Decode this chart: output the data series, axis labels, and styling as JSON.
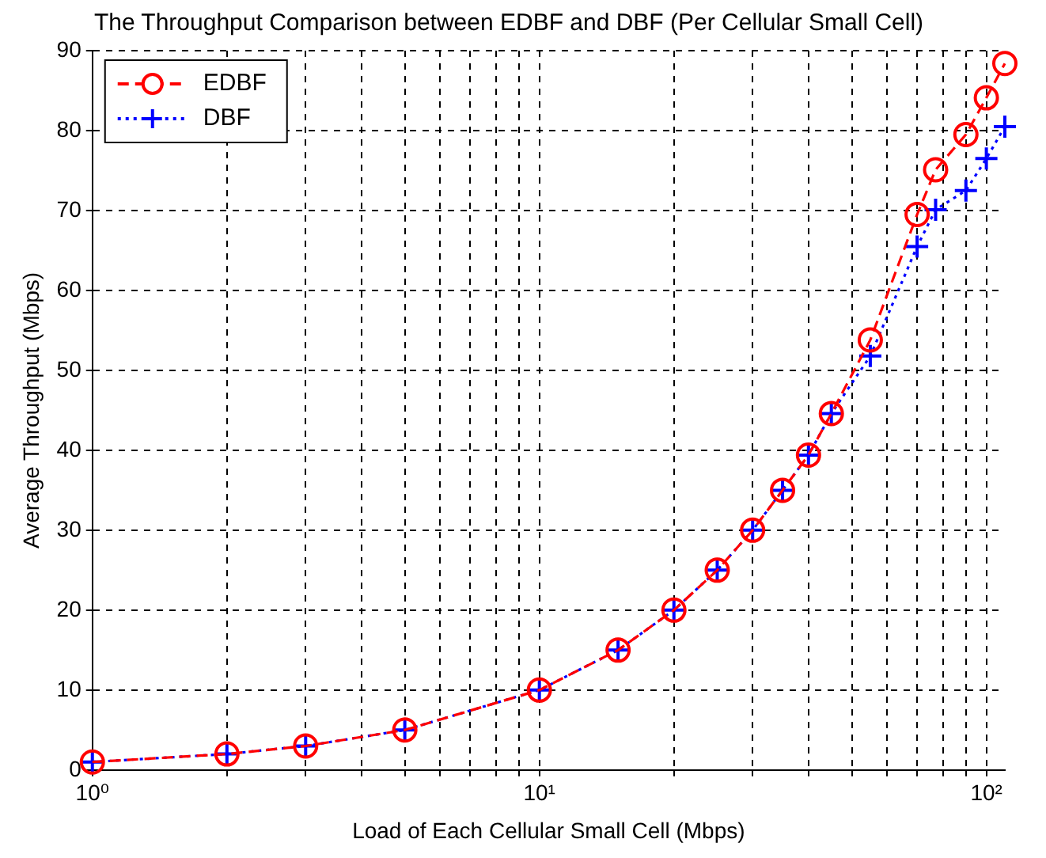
{
  "chart_data": {
    "type": "line",
    "title": "The Throughput Comparison between EDBF and DBF (Per Cellular Small Cell)",
    "xlabel": "Load of Each Cellular Small Cell (Mbps)",
    "ylabel": "Average Throughput (Mbps)",
    "log": "x",
    "x": [
      1,
      2,
      3,
      5,
      10,
      15,
      20,
      25,
      30,
      35,
      40,
      45,
      55,
      70,
      77,
      90,
      100,
      110
    ],
    "series": [
      {
        "name": "EDBF",
        "color": "#ff0000",
        "marker": "circle",
        "line_style": "dashed",
        "values": [
          1,
          2,
          3,
          5,
          10,
          15,
          20,
          25,
          30,
          35,
          39.4,
          44.6,
          53.8,
          69.5,
          75.1,
          79.5,
          84.1,
          88.4
        ]
      },
      {
        "name": "DBF",
        "color": "#0000ff",
        "marker": "cross",
        "line_style": "dotted",
        "values": [
          1,
          2,
          3,
          5,
          10,
          15,
          20,
          25,
          30,
          35,
          39.4,
          44.6,
          51.8,
          65.5,
          70.1,
          72.5,
          76.5,
          80.5
        ]
      }
    ],
    "xlim": [
      1,
      110
    ],
    "xticks": [
      {
        "value": 1,
        "label": "10⁰"
      },
      {
        "value": 2,
        "label": null
      },
      {
        "value": 3,
        "label": null
      },
      {
        "value": 4,
        "label": null
      },
      {
        "value": 5,
        "label": null
      },
      {
        "value": 6,
        "label": null
      },
      {
        "value": 7,
        "label": null
      },
      {
        "value": 8,
        "label": null
      },
      {
        "value": 9,
        "label": null
      },
      {
        "value": 10,
        "label": "10¹"
      },
      {
        "value": 20,
        "label": null
      },
      {
        "value": 30,
        "label": null
      },
      {
        "value": 40,
        "label": null
      },
      {
        "value": 50,
        "label": null
      },
      {
        "value": 60,
        "label": null
      },
      {
        "value": 70,
        "label": null
      },
      {
        "value": 80,
        "label": null
      },
      {
        "value": 90,
        "label": null
      },
      {
        "value": 100,
        "label": "10²"
      }
    ],
    "ylim": [
      0,
      90
    ],
    "yticks": [
      0,
      10,
      20,
      30,
      40,
      50,
      60,
      70,
      80,
      90
    ],
    "grid": true,
    "legend": "top left"
  }
}
